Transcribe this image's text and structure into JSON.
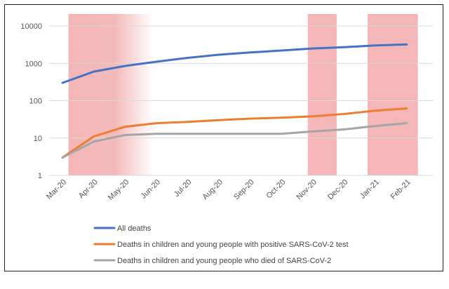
{
  "chart_data": {
    "type": "line",
    "yscale": "log",
    "ylim": [
      1,
      10000
    ],
    "y_ticks": [
      "1",
      "10",
      "100",
      "1000",
      "10000"
    ],
    "categories": [
      "Mar-20",
      "Apr-20",
      "May-20",
      "Jun-20",
      "Jul-20",
      "Aug-20",
      "Sep-20",
      "Oct-20",
      "Nov-20",
      "Dec-20",
      "Jan-21",
      "Feb-21"
    ],
    "series": [
      {
        "name": "All deaths",
        "color": "#4472C4",
        "values": [
          300,
          600,
          850,
          1100,
          1400,
          1700,
          1950,
          2200,
          2500,
          2700,
          3000,
          3200
        ]
      },
      {
        "name": "Deaths in children and young people with positive SARS-CoV-2 test",
        "color": "#ED7D31",
        "values": [
          3,
          11,
          20,
          25,
          27,
          30,
          33,
          35,
          38,
          44,
          54,
          62
        ]
      },
      {
        "name": "Deaths in children and young people who died of SARS-CoV-2",
        "color": "#A5A5A5",
        "values": [
          3,
          8,
          12,
          13,
          13,
          13,
          13,
          13,
          15,
          17,
          21,
          25
        ]
      }
    ],
    "highlighted_periods": [
      {
        "from": "Apr-20",
        "to": "Jun-20",
        "style": "fade-right"
      },
      {
        "from": "Nov-20",
        "to": "Nov-20",
        "style": "solid"
      },
      {
        "from": "Jan-21",
        "to": "Feb-21",
        "style": "solid"
      }
    ],
    "highlight_color": "#F4B6B6",
    "grid": "horizontal",
    "legend_position": "bottom"
  }
}
